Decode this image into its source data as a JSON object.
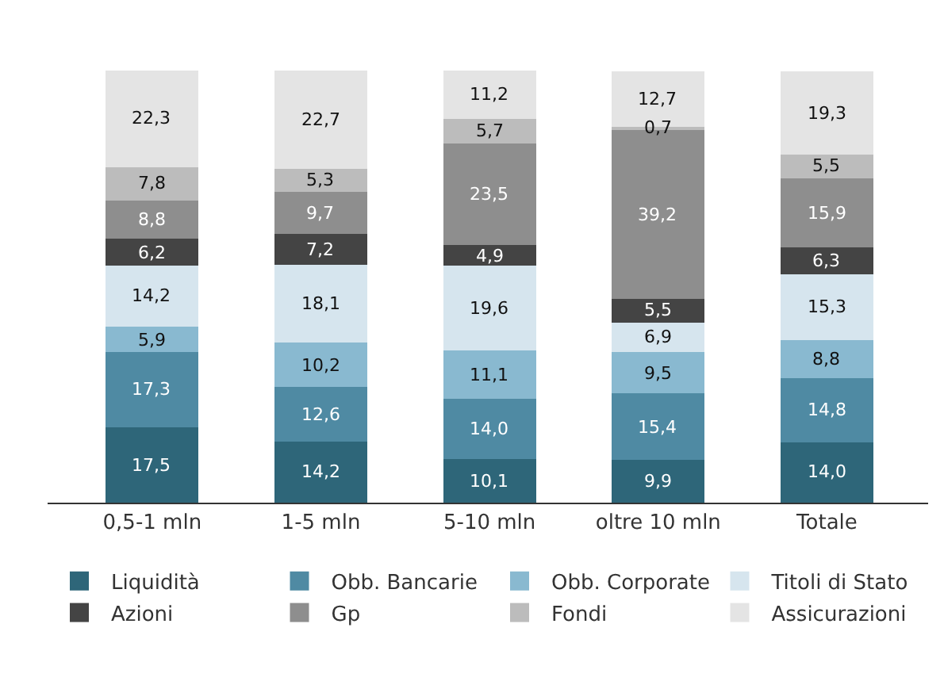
{
  "chart_data": {
    "type": "bar",
    "stacked": true,
    "categories": [
      "0,5-1 mln",
      "1-5 mln",
      "5-10 mln",
      "oltre 10 mln",
      "Totale"
    ],
    "series": [
      {
        "name": "Liquidità",
        "color": "#2e6679",
        "values": [
          17.5,
          14.2,
          10.1,
          9.9,
          14.0
        ],
        "value_labels": [
          "17,5",
          "14,2",
          "10,1",
          "9,9",
          "14,0"
        ]
      },
      {
        "name": "Obb. Bancarie",
        "color": "#4f8aa3",
        "values": [
          17.3,
          12.6,
          14.0,
          15.4,
          14.8
        ],
        "value_labels": [
          "17,3",
          "12,6",
          "14,0",
          "15,4",
          "14,8"
        ]
      },
      {
        "name": "Obb. Corporate",
        "color": "#89b9d0",
        "values": [
          5.9,
          10.2,
          11.1,
          9.5,
          8.8
        ],
        "value_labels": [
          "5,9",
          "10,2",
          "11,1",
          "9,5",
          "8,8"
        ]
      },
      {
        "name": "Titoli di Stato",
        "color": "#d6e5ee",
        "values": [
          14.2,
          18.1,
          19.6,
          6.9,
          15.3
        ],
        "value_labels": [
          "14,2",
          "18,1",
          "19,6",
          "6,9",
          "15,3"
        ]
      },
      {
        "name": "Azioni",
        "color": "#444444",
        "values": [
          6.2,
          7.2,
          4.9,
          5.5,
          6.3
        ],
        "value_labels": [
          "6,2",
          "7,2",
          "4,9",
          "5,5",
          "6,3"
        ]
      },
      {
        "name": "Gp",
        "color": "#8e8e8e",
        "values": [
          8.8,
          9.7,
          23.5,
          39.2,
          15.9
        ],
        "value_labels": [
          "8,8",
          "9,7",
          "23,5",
          "39,2",
          "15,9"
        ]
      },
      {
        "name": "Fondi",
        "color": "#bcbcbc",
        "values": [
          7.8,
          5.3,
          5.7,
          0.7,
          5.5
        ],
        "value_labels": [
          "7,8",
          "5,3",
          "5,7",
          "0,7",
          "5,5"
        ]
      },
      {
        "name": "Assicurazioni",
        "color": "#e4e4e4",
        "values": [
          22.3,
          22.7,
          11.2,
          12.7,
          19.3
        ],
        "value_labels": [
          "22,3",
          "22,7",
          "11,2",
          "12,7",
          "19,3"
        ]
      }
    ],
    "legend": "bottom"
  }
}
